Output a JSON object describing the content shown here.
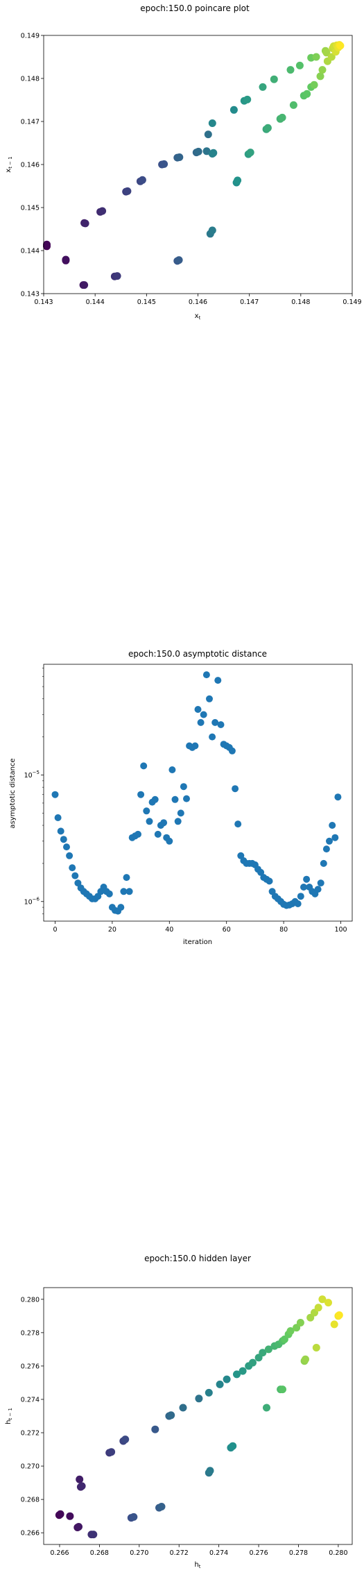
{
  "chart_data": [
    {
      "type": "scatter",
      "title": "epoch:150.0 poincare plot",
      "xlabel": "x_t",
      "ylabel": "x_{t-1}",
      "xlim": [
        0.143,
        0.149
      ],
      "ylim": [
        0.143,
        0.149
      ],
      "xticks": [
        "0.143",
        "0.144",
        "0.145",
        "0.146",
        "0.147",
        "0.148",
        "0.149"
      ],
      "yticks": [
        "0.143",
        "0.144",
        "0.145",
        "0.146",
        "0.147",
        "0.148",
        "0.149"
      ],
      "colormap": [
        "#440154",
        "#3b528b",
        "#21918c",
        "#5ec962",
        "#fde725"
      ],
      "points": [
        [
          0.14306,
          0.1441
        ],
        [
          0.14306,
          0.14414
        ],
        [
          0.14343,
          0.14377
        ],
        [
          0.14343,
          0.14379
        ],
        [
          0.14377,
          0.1432
        ],
        [
          0.14379,
          0.1432
        ],
        [
          0.14379,
          0.14464
        ],
        [
          0.14381,
          0.14463
        ],
        [
          0.1441,
          0.1449
        ],
        [
          0.14414,
          0.14492
        ],
        [
          0.14438,
          0.1434
        ],
        [
          0.14443,
          0.14341
        ],
        [
          0.1446,
          0.14537
        ],
        [
          0.14463,
          0.14538
        ],
        [
          0.14488,
          0.14561
        ],
        [
          0.14492,
          0.14564
        ],
        [
          0.1453,
          0.146
        ],
        [
          0.14534,
          0.14601
        ],
        [
          0.1456,
          0.14376
        ],
        [
          0.14563,
          0.14378
        ],
        [
          0.1456,
          0.14616
        ],
        [
          0.14564,
          0.14617
        ],
        [
          0.14597,
          0.14628
        ],
        [
          0.14601,
          0.1463
        ],
        [
          0.1462,
          0.1467
        ],
        [
          0.14617,
          0.14631
        ],
        [
          0.14624,
          0.14439
        ],
        [
          0.14628,
          0.14447
        ],
        [
          0.14628,
          0.14625
        ],
        [
          0.1463,
          0.14627
        ],
        [
          0.14628,
          0.14696
        ],
        [
          0.1467,
          0.14727
        ],
        [
          0.14675,
          0.14558
        ],
        [
          0.14677,
          0.14563
        ],
        [
          0.1469,
          0.14748
        ],
        [
          0.14696,
          0.14751
        ],
        [
          0.14698,
          0.14624
        ],
        [
          0.14702,
          0.14628
        ],
        [
          0.14726,
          0.1478
        ],
        [
          0.14733,
          0.14682
        ],
        [
          0.14736,
          0.14685
        ],
        [
          0.14748,
          0.14798
        ],
        [
          0.1476,
          0.14706
        ],
        [
          0.14764,
          0.14709
        ],
        [
          0.1478,
          0.1482
        ],
        [
          0.14786,
          0.14738
        ],
        [
          0.14798,
          0.1483
        ],
        [
          0.14806,
          0.1476
        ],
        [
          0.14812,
          0.14764
        ],
        [
          0.1482,
          0.1478
        ],
        [
          0.1482,
          0.14848
        ],
        [
          0.14826,
          0.14785
        ],
        [
          0.1483,
          0.1485
        ],
        [
          0.14838,
          0.14805
        ],
        [
          0.14842,
          0.1482
        ],
        [
          0.14848,
          0.14864
        ],
        [
          0.1485,
          0.1486
        ],
        [
          0.14852,
          0.1484
        ],
        [
          0.1486,
          0.1485
        ],
        [
          0.14862,
          0.1487
        ],
        [
          0.14864,
          0.14875
        ],
        [
          0.14868,
          0.14862
        ],
        [
          0.1487,
          0.14877
        ],
        [
          0.14873,
          0.14872
        ],
        [
          0.14875,
          0.14878
        ],
        [
          0.14877,
          0.14876
        ]
      ]
    },
    {
      "type": "scatter",
      "title": "epoch:150.0 asymptotic distance",
      "xlabel": "iteration",
      "ylabel": "asymptotic distance",
      "xlim": [
        -4,
        104
      ],
      "ylim": [
        7e-07,
        7.5e-05
      ],
      "yscale": "log",
      "xticks": [
        "0",
        "20",
        "40",
        "60",
        "80",
        "100"
      ],
      "yticks": [
        {
          "label": "10",
          "exp": "−6"
        },
        {
          "label": "10",
          "exp": "−5"
        }
      ],
      "color": "#1f77b4",
      "y": [
        7e-06,
        4.6e-06,
        3.6e-06,
        3.1e-06,
        2.7e-06,
        2.3e-06,
        1.85e-06,
        1.6e-06,
        1.4e-06,
        1.28e-06,
        1.2e-06,
        1.15e-06,
        1.1e-06,
        1.05e-06,
        1.05e-06,
        1.1e-06,
        1.2e-06,
        1.3e-06,
        1.2e-06,
        1.15e-06,
        9e-07,
        8.5e-07,
        8.4e-07,
        9e-07,
        1.2e-06,
        1.55e-06,
        1.2e-06,
        3.2e-06,
        3.3e-06,
        3.4e-06,
        7e-06,
        1.18e-05,
        5.2e-06,
        4.3e-06,
        6.1e-06,
        6.4e-06,
        3.4e-06,
        4e-06,
        4.2e-06,
        3.2e-06,
        3e-06,
        1.1e-05,
        6.4e-06,
        4.3e-06,
        5e-06,
        8.1e-06,
        6.5e-06,
        1.7e-05,
        1.65e-05,
        1.7e-05,
        3.3e-05,
        2.6e-05,
        3e-05,
        6.2e-05,
        4e-05,
        2e-05,
        2.6e-05,
        5.6e-05,
        2.5e-05,
        1.75e-05,
        1.7e-05,
        1.65e-05,
        1.55e-05,
        7.8e-06,
        4.1e-06,
        2.3e-06,
        2.1e-06,
        2e-06,
        2e-06,
        2e-06,
        1.95e-06,
        1.8e-06,
        1.7e-06,
        1.55e-06,
        1.5e-06,
        1.45e-06,
        1.2e-06,
        1.1e-06,
        1.05e-06,
        1e-06,
        9.5e-07,
        9.3e-07,
        9.4e-07,
        9.6e-07,
        1e-06,
        9.6e-07,
        1.1e-06,
        1.3e-06,
        1.5e-06,
        1.3e-06,
        1.2e-06,
        1.15e-06,
        1.25e-06,
        1.4e-06,
        2e-06,
        2.6e-06,
        3e-06,
        4e-06,
        3.2e-06,
        6.7e-06
      ]
    },
    {
      "type": "scatter",
      "title": "epoch:150.0 hidden layer",
      "xlabel": "h_t",
      "ylabel": "h_{t-1}",
      "xlim": [
        0.2652,
        0.2807
      ],
      "ylim": [
        0.2653,
        0.2807
      ],
      "xticks": [
        "0.266",
        "0.268",
        "0.270",
        "0.272",
        "0.274",
        "0.276",
        "0.278",
        "0.280"
      ],
      "yticks": [
        "0.266",
        "0.268",
        "0.270",
        "0.272",
        "0.274",
        "0.276",
        "0.278",
        "0.280"
      ],
      "colormap": [
        "#440154",
        "#3b528b",
        "#21918c",
        "#5ec962",
        "#fde725"
      ],
      "points": [
        [
          0.26598,
          0.26706
        ],
        [
          0.26604,
          0.26712
        ],
        [
          0.26652,
          0.267
        ],
        [
          0.2669,
          0.26632
        ],
        [
          0.26696,
          0.26636
        ],
        [
          0.267,
          0.2692
        ],
        [
          0.26706,
          0.26875
        ],
        [
          0.26712,
          0.2688
        ],
        [
          0.2676,
          0.2659
        ],
        [
          0.2677,
          0.2659
        ],
        [
          0.2685,
          0.2708
        ],
        [
          0.2686,
          0.27085
        ],
        [
          0.2692,
          0.2715
        ],
        [
          0.2693,
          0.2716
        ],
        [
          0.2696,
          0.2669
        ],
        [
          0.26972,
          0.26695
        ],
        [
          0.2708,
          0.2722
        ],
        [
          0.271,
          0.2675
        ],
        [
          0.27112,
          0.26757
        ],
        [
          0.2715,
          0.273
        ],
        [
          0.2716,
          0.27305
        ],
        [
          0.2722,
          0.2735
        ],
        [
          0.273,
          0.27405
        ],
        [
          0.2735,
          0.2696
        ],
        [
          0.27356,
          0.26972
        ],
        [
          0.2735,
          0.2744
        ],
        [
          0.27405,
          0.2749
        ],
        [
          0.2744,
          0.2752
        ],
        [
          0.2746,
          0.2711
        ],
        [
          0.2747,
          0.2712
        ],
        [
          0.2749,
          0.2755
        ],
        [
          0.2752,
          0.2757
        ],
        [
          0.2755,
          0.276
        ],
        [
          0.2757,
          0.2762
        ],
        [
          0.276,
          0.2765
        ],
        [
          0.2762,
          0.2768
        ],
        [
          0.2764,
          0.2735
        ],
        [
          0.2765,
          0.277
        ],
        [
          0.2768,
          0.2772
        ],
        [
          0.277,
          0.2773
        ],
        [
          0.2771,
          0.2746
        ],
        [
          0.2772,
          0.2775
        ],
        [
          0.2772,
          0.2746
        ],
        [
          0.2773,
          0.2776
        ],
        [
          0.2775,
          0.2779
        ],
        [
          0.2776,
          0.2781
        ],
        [
          0.2779,
          0.2783
        ],
        [
          0.2781,
          0.2786
        ],
        [
          0.2783,
          0.2763
        ],
        [
          0.27835,
          0.2764
        ],
        [
          0.2786,
          0.2789
        ],
        [
          0.2788,
          0.2792
        ],
        [
          0.2789,
          0.2771
        ],
        [
          0.279,
          0.2795
        ],
        [
          0.2792,
          0.28
        ],
        [
          0.2795,
          0.2798
        ],
        [
          0.2798,
          0.2785
        ],
        [
          0.28,
          0.279
        ],
        [
          0.28005,
          0.27905
        ]
      ]
    }
  ]
}
